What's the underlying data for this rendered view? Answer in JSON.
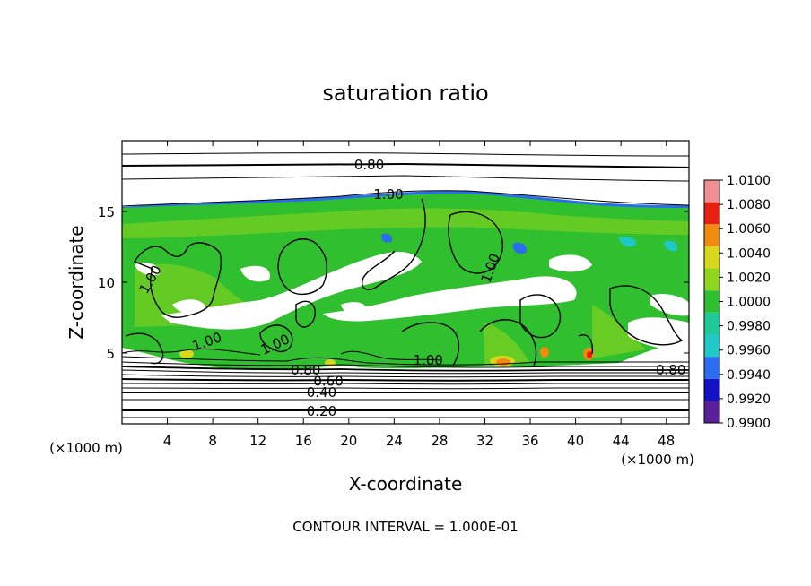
{
  "chart_data": {
    "type": "heatmap",
    "title": "saturation ratio",
    "xlabel": "X-coordinate",
    "ylabel": "Z-coordinate",
    "x_unit": "(×1000 m)",
    "y_unit": "(×1000 m)",
    "xlim": [
      0,
      50
    ],
    "ylim": [
      0,
      20
    ],
    "x_ticks": [
      4,
      8,
      12,
      16,
      20,
      24,
      28,
      32,
      36,
      40,
      44,
      48
    ],
    "y_ticks": [
      5,
      10,
      15
    ],
    "footer": "CONTOUR INTERVAL = 1.000E-01",
    "colorbar": {
      "levels": [
        "0.9900",
        "0.9920",
        "0.9940",
        "0.9960",
        "0.9980",
        "1.0000",
        "1.0020",
        "1.0040",
        "1.0060",
        "1.0080",
        "1.0100"
      ],
      "colors": [
        "#5b1f9c",
        "#1212c8",
        "#2a6df0",
        "#20c8c8",
        "#1ec99a",
        "#2fbf2f",
        "#8fd61e",
        "#d8d81a",
        "#f08a10",
        "#e82010",
        "#f09090"
      ]
    },
    "contour_labels": [
      {
        "text": "0.80",
        "x": 21.8,
        "y": 18.3
      },
      {
        "text": "1.00",
        "x": 23.5,
        "y": 16.2
      },
      {
        "text": "1.00",
        "x": 32.5,
        "y": 11.0,
        "rotate": -70
      },
      {
        "text": "1.00",
        "x": 2.5,
        "y": 10.2,
        "rotate": -60
      },
      {
        "text": "1.00",
        "x": 7.5,
        "y": 5.8,
        "rotate": -20
      },
      {
        "text": "1.00",
        "x": 13.5,
        "y": 5.6,
        "rotate": -25
      },
      {
        "text": "1.00",
        "x": 27,
        "y": 4.5
      },
      {
        "text": "0.80",
        "x": 48.4,
        "y": 3.8
      },
      {
        "text": "0.80",
        "x": 16.2,
        "y": 3.8
      },
      {
        "text": "0.60",
        "x": 18.2,
        "y": 3.0
      },
      {
        "text": "0.40",
        "x": 17.6,
        "y": 2.2
      },
      {
        "text": "0.20",
        "x": 17.6,
        "y": 0.9
      }
    ]
  }
}
